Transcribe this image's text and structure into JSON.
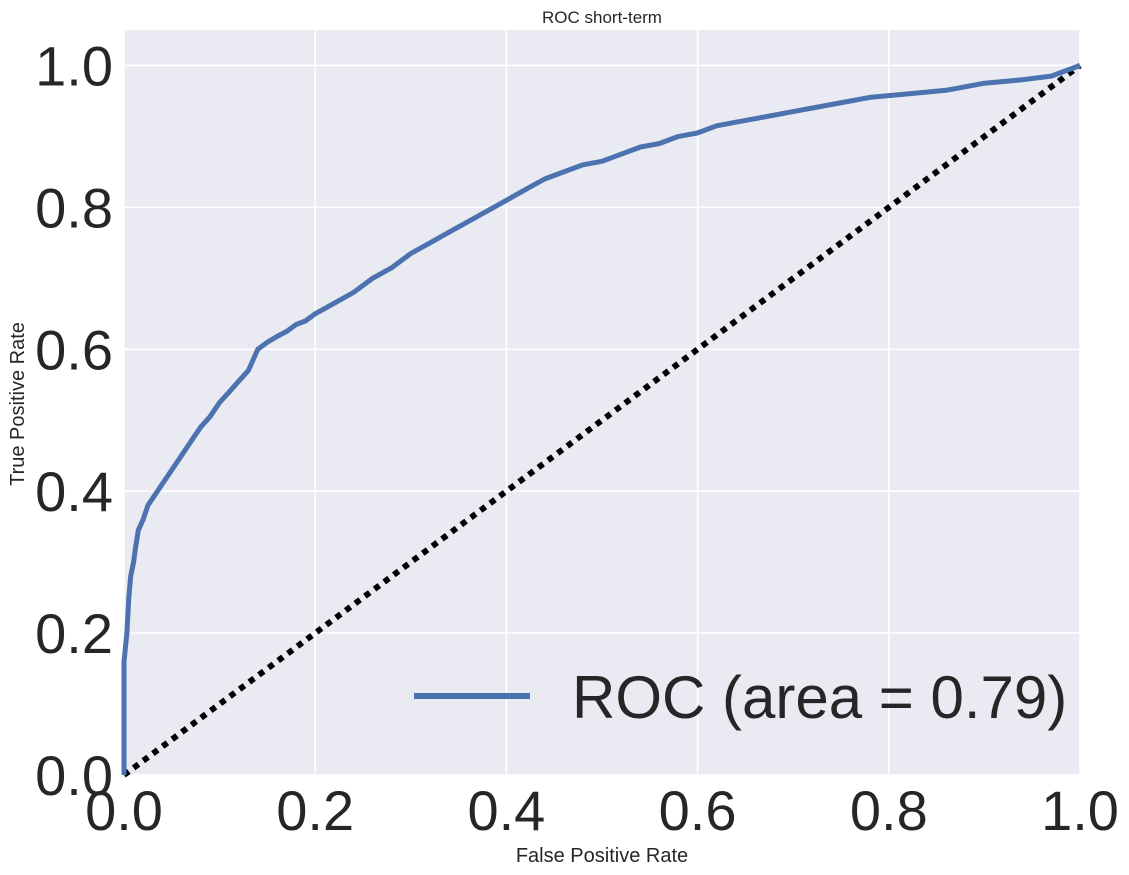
{
  "chart_data": {
    "type": "line",
    "title": "ROC short-term",
    "xlabel": "False Positive Rate",
    "ylabel": "True Positive Rate",
    "xlim": [
      0.0,
      1.0
    ],
    "ylim": [
      0.0,
      1.05
    ],
    "xticks": [
      "0.0",
      "0.2",
      "0.4",
      "0.6",
      "0.8",
      "1.0"
    ],
    "yticks": [
      "0.0",
      "0.2",
      "0.4",
      "0.6",
      "0.8",
      "1.0"
    ],
    "grid": true,
    "legend": {
      "placement": "lower right",
      "entries": [
        "ROC (area = 0.79)"
      ]
    },
    "series": [
      {
        "name": "ROC (area = 0.79)",
        "color": "#4c72b0",
        "style": "solid",
        "x": [
          0.0,
          0.0,
          0.003,
          0.005,
          0.007,
          0.01,
          0.012,
          0.015,
          0.02,
          0.025,
          0.03,
          0.04,
          0.05,
          0.06,
          0.07,
          0.08,
          0.09,
          0.1,
          0.11,
          0.12,
          0.13,
          0.14,
          0.15,
          0.16,
          0.17,
          0.18,
          0.19,
          0.2,
          0.22,
          0.24,
          0.26,
          0.28,
          0.3,
          0.32,
          0.34,
          0.36,
          0.38,
          0.4,
          0.42,
          0.44,
          0.46,
          0.48,
          0.5,
          0.52,
          0.54,
          0.56,
          0.58,
          0.6,
          0.62,
          0.64,
          0.66,
          0.7,
          0.74,
          0.78,
          0.82,
          0.86,
          0.9,
          0.94,
          0.97,
          1.0
        ],
        "y": [
          0.0,
          0.16,
          0.2,
          0.25,
          0.28,
          0.3,
          0.32,
          0.345,
          0.36,
          0.38,
          0.39,
          0.41,
          0.43,
          0.45,
          0.47,
          0.49,
          0.505,
          0.525,
          0.54,
          0.555,
          0.57,
          0.6,
          0.61,
          0.618,
          0.625,
          0.635,
          0.64,
          0.65,
          0.665,
          0.68,
          0.7,
          0.715,
          0.735,
          0.75,
          0.765,
          0.78,
          0.795,
          0.81,
          0.825,
          0.84,
          0.85,
          0.86,
          0.865,
          0.875,
          0.885,
          0.89,
          0.9,
          0.905,
          0.915,
          0.92,
          0.925,
          0.935,
          0.945,
          0.955,
          0.96,
          0.965,
          0.975,
          0.98,
          0.985,
          1.0
        ]
      },
      {
        "name": "",
        "color": "#000000",
        "style": "dotted",
        "x": [
          0.0,
          1.0
        ],
        "y": [
          0.0,
          1.0
        ]
      }
    ]
  }
}
